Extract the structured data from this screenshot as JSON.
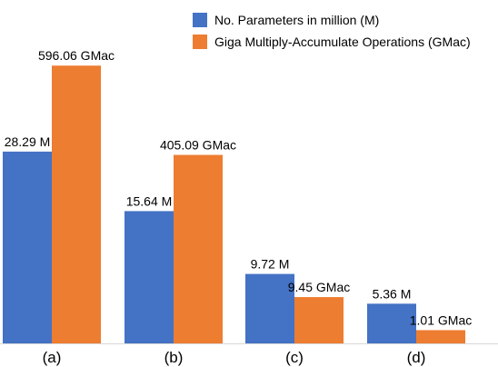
{
  "chart_data": {
    "type": "bar",
    "categories": [
      "(a)",
      "(b)",
      "(c)",
      "(d)"
    ],
    "series": [
      {
        "name": "No. Parameters in million (M)",
        "color": "#4472C4",
        "plot_values": [
          0.58,
          0.4,
          0.21,
          0.12
        ],
        "labels": [
          "28.29 M",
          "15.64 M",
          "9.72 M",
          "5.36 M"
        ]
      },
      {
        "name": "Giga Multiply-Accumulate Operations (GMac)",
        "color": "#ED7D31",
        "plot_values": [
          0.84,
          0.57,
          0.14,
          0.04
        ],
        "labels": [
          "596.06 GMac",
          "405.09 GMac",
          "9.45 GMac",
          "1.01 GMac"
        ]
      }
    ],
    "grid": false,
    "legend_position": "top-right"
  }
}
